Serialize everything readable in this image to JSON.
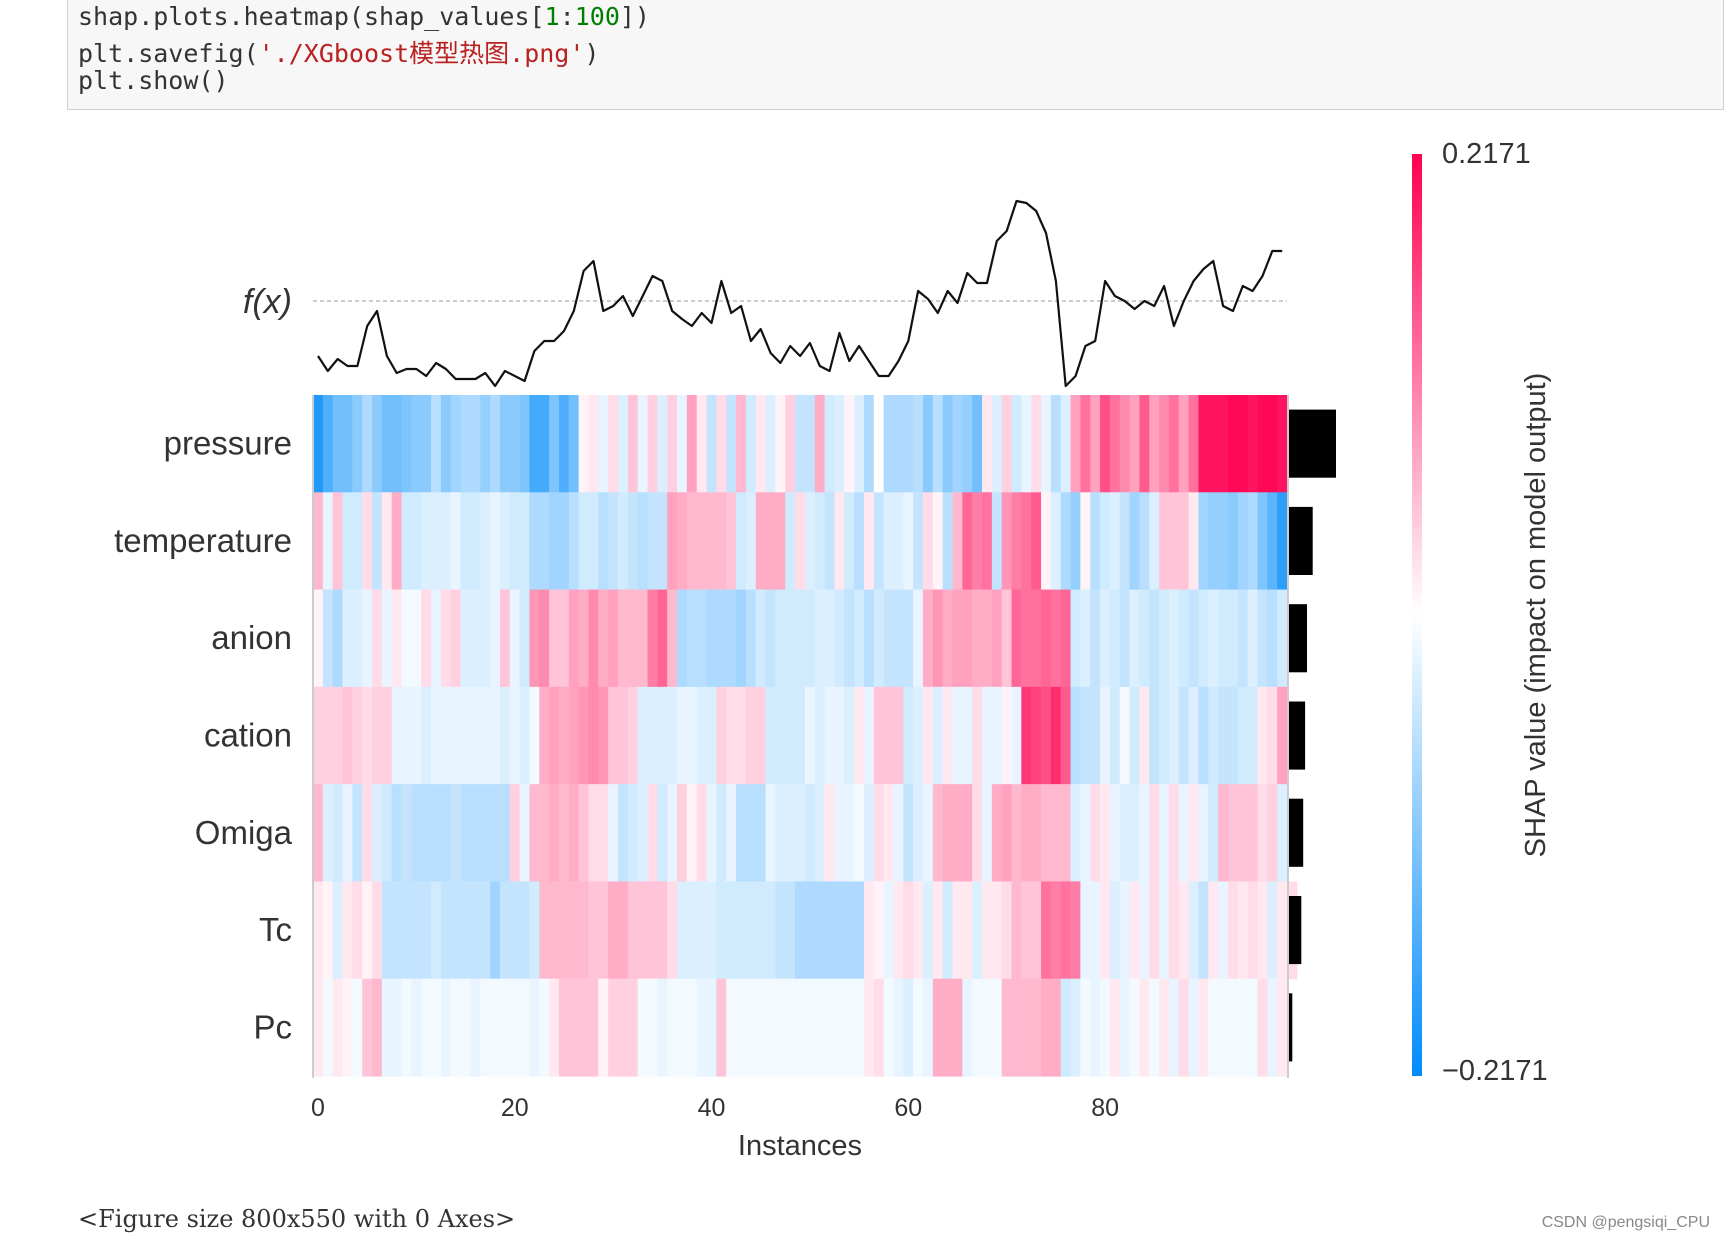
{
  "code": {
    "line1": {
      "a": "shap.plots.heatmap(shap_values[",
      "b": "1",
      "c": ":",
      "d": "100",
      "e": "])"
    },
    "line2": {
      "a": "plt.savefig(",
      "b": "'./XGboost模型热图.png'",
      "c": ")"
    },
    "line3": "plt.show()"
  },
  "output_text": "<Figure size 800x550 with 0 Axes>",
  "watermark": "CSDN @pengsiqi_CPU",
  "chart_data": {
    "type": "heatmap",
    "fx_label": "f(x)",
    "xlabel": "Instances",
    "x_ticks": [
      0,
      20,
      40,
      60,
      80
    ],
    "n_instances": 99,
    "features": [
      "pressure",
      "temperature",
      "anion",
      "cation",
      "Omiga",
      "Tc",
      "Pc"
    ],
    "colorbar": {
      "min_label": "−0.2171",
      "max_label": "0.2171",
      "min": -0.2171,
      "max": 0.2171,
      "label": "SHAP value (impact on model output)"
    },
    "colors": {
      "negative": "#008bfb",
      "positive": "#ff0052",
      "neutral": "#ffffff"
    },
    "mean_abs_shap": [
      0.099,
      0.05,
      0.038,
      0.034,
      0.03,
      0.026,
      0.007
    ],
    "fx_values": [
      -0.055,
      -0.07,
      -0.058,
      -0.065,
      -0.065,
      -0.025,
      -0.01,
      -0.055,
      -0.072,
      -0.068,
      -0.068,
      -0.075,
      -0.062,
      -0.068,
      -0.078,
      -0.078,
      -0.078,
      -0.072,
      -0.085,
      -0.07,
      -0.075,
      -0.08,
      -0.05,
      -0.04,
      -0.04,
      -0.03,
      -0.01,
      0.03,
      0.04,
      -0.01,
      -0.005,
      0.005,
      -0.015,
      0.005,
      0.025,
      0.02,
      -0.01,
      -0.018,
      -0.025,
      -0.012,
      -0.022,
      0.02,
      -0.012,
      -0.005,
      -0.04,
      -0.028,
      -0.052,
      -0.062,
      -0.045,
      -0.055,
      -0.042,
      -0.065,
      -0.07,
      -0.032,
      -0.06,
      -0.045,
      -0.06,
      -0.075,
      -0.075,
      -0.06,
      -0.04,
      0.01,
      0.002,
      -0.012,
      0.01,
      -0.002,
      0.028,
      0.018,
      0.018,
      0.06,
      0.07,
      0.1,
      0.098,
      0.09,
      0.068,
      0.02,
      -0.085,
      -0.075,
      -0.045,
      -0.04,
      0.02,
      0.005,
      0.0,
      -0.008,
      0.0,
      -0.005,
      0.015,
      -0.025,
      0.0,
      0.02,
      0.032,
      0.04,
      -0.005,
      -0.01,
      0.015,
      0.01,
      0.025,
      0.05,
      0.05
    ],
    "shap_values": [
      [
        -0.19,
        -0.15,
        -0.12,
        -0.12,
        -0.1,
        -0.07,
        -0.1,
        -0.12,
        -0.12,
        -0.11,
        -0.1,
        -0.1,
        -0.06,
        -0.1,
        -0.08,
        -0.07,
        -0.07,
        -0.09,
        -0.07,
        -0.1,
        -0.1,
        -0.11,
        -0.16,
        -0.16,
        -0.11,
        -0.15,
        -0.12,
        0.01,
        0.02,
        -0.02,
        0.03,
        -0.03,
        0.05,
        -0.02,
        0.04,
        -0.03,
        0.04,
        -0.02,
        0.08,
        0.02,
        -0.05,
        0.03,
        -0.05,
        0.06,
        -0.04,
        0.02,
        -0.03,
        0.01,
        0.04,
        -0.05,
        -0.05,
        0.07,
        -0.04,
        -0.03,
        0.01,
        -0.03,
        -0.07,
        0.0,
        -0.07,
        -0.07,
        -0.07,
        -0.06,
        -0.1,
        -0.06,
        -0.1,
        -0.08,
        -0.09,
        -0.12,
        0.02,
        -0.03,
        0.04,
        -0.04,
        -0.02,
        0.03,
        -0.02,
        -0.06,
        -0.03,
        0.08,
        0.12,
        0.08,
        0.15,
        0.12,
        0.1,
        0.08,
        0.14,
        0.08,
        0.1,
        0.12,
        0.08,
        0.12,
        0.2,
        0.2,
        0.2,
        0.21,
        0.21,
        0.2,
        0.21,
        0.21,
        0.2
      ],
      [
        0.06,
        -0.02,
        0.05,
        -0.04,
        -0.04,
        0.03,
        -0.05,
        0.02,
        0.07,
        -0.04,
        -0.04,
        -0.03,
        -0.03,
        -0.03,
        -0.02,
        -0.04,
        -0.04,
        -0.03,
        -0.02,
        -0.03,
        -0.04,
        -0.04,
        -0.07,
        -0.07,
        -0.08,
        -0.08,
        -0.06,
        -0.04,
        -0.04,
        -0.06,
        -0.05,
        -0.04,
        -0.05,
        -0.06,
        -0.05,
        -0.05,
        0.08,
        0.07,
        0.06,
        0.06,
        0.06,
        0.06,
        0.05,
        -0.04,
        -0.03,
        0.07,
        0.07,
        0.07,
        -0.04,
        0.03,
        -0.03,
        -0.04,
        -0.05,
        0.02,
        -0.04,
        -0.06,
        0.02,
        -0.05,
        -0.03,
        -0.03,
        -0.02,
        -0.05,
        0.03,
        0.01,
        -0.06,
        0.06,
        0.13,
        0.11,
        0.12,
        -0.05,
        0.09,
        0.11,
        0.12,
        0.14,
        0.01,
        -0.03,
        -0.07,
        -0.09,
        0.01,
        -0.06,
        -0.04,
        -0.03,
        -0.05,
        -0.08,
        -0.06,
        -0.03,
        0.05,
        0.05,
        0.05,
        0.02,
        -0.08,
        -0.09,
        -0.09,
        -0.1,
        -0.08,
        -0.07,
        -0.11,
        -0.14,
        -0.18
      ],
      [
        0.01,
        -0.05,
        -0.07,
        -0.03,
        -0.03,
        -0.02,
        0.03,
        -0.02,
        0.02,
        -0.01,
        -0.01,
        0.03,
        -0.02,
        0.03,
        0.04,
        -0.03,
        -0.03,
        -0.03,
        -0.02,
        0.05,
        -0.02,
        -0.04,
        0.09,
        0.1,
        0.05,
        0.05,
        0.08,
        0.07,
        0.1,
        0.07,
        0.08,
        0.06,
        0.06,
        0.06,
        0.11,
        0.13,
        0.06,
        -0.07,
        -0.06,
        -0.06,
        -0.07,
        -0.07,
        -0.07,
        -0.08,
        -0.06,
        -0.04,
        -0.05,
        -0.04,
        -0.04,
        -0.04,
        -0.04,
        -0.03,
        -0.03,
        -0.04,
        -0.05,
        -0.04,
        -0.06,
        -0.04,
        -0.05,
        -0.05,
        -0.05,
        -0.02,
        0.07,
        0.09,
        0.07,
        0.08,
        0.08,
        0.07,
        0.07,
        0.08,
        0.05,
        0.13,
        0.12,
        0.12,
        0.13,
        0.12,
        0.13,
        -0.04,
        -0.03,
        -0.05,
        -0.03,
        -0.04,
        -0.05,
        -0.03,
        -0.04,
        -0.05,
        -0.04,
        -0.03,
        -0.04,
        -0.05,
        -0.04,
        -0.03,
        -0.04,
        -0.04,
        -0.05,
        -0.03,
        -0.05,
        -0.06,
        -0.04
      ],
      [
        0.04,
        0.04,
        0.04,
        0.05,
        0.04,
        0.03,
        0.04,
        0.04,
        -0.02,
        -0.02,
        -0.02,
        -0.03,
        -0.02,
        -0.02,
        -0.02,
        -0.02,
        -0.02,
        -0.02,
        -0.02,
        -0.03,
        -0.02,
        -0.03,
        -0.01,
        0.07,
        0.08,
        0.07,
        0.08,
        0.09,
        0.1,
        0.09,
        0.05,
        0.05,
        0.04,
        -0.03,
        -0.03,
        -0.03,
        -0.03,
        -0.02,
        -0.02,
        -0.03,
        -0.03,
        0.04,
        0.03,
        0.03,
        0.04,
        0.04,
        -0.04,
        -0.04,
        -0.04,
        -0.04,
        -0.02,
        -0.03,
        -0.02,
        -0.02,
        -0.03,
        0.02,
        -0.02,
        0.05,
        0.05,
        0.05,
        -0.04,
        -0.03,
        0.02,
        -0.03,
        0.02,
        -0.02,
        -0.02,
        0.03,
        -0.02,
        -0.02,
        0.01,
        -0.02,
        0.17,
        0.16,
        0.15,
        0.18,
        0.14,
        -0.06,
        -0.05,
        -0.05,
        -0.02,
        -0.04,
        -0.01,
        -0.04,
        0.02,
        -0.05,
        -0.04,
        -0.03,
        -0.05,
        -0.03,
        -0.06,
        -0.04,
        -0.05,
        -0.05,
        -0.04,
        -0.04,
        0.02,
        0.03,
        0.08
      ],
      [
        0.06,
        -0.03,
        -0.04,
        -0.02,
        -0.05,
        0.03,
        -0.03,
        -0.04,
        -0.06,
        -0.05,
        -0.06,
        -0.06,
        -0.06,
        -0.06,
        -0.05,
        -0.06,
        -0.06,
        -0.06,
        -0.06,
        -0.06,
        0.04,
        -0.02,
        0.06,
        0.06,
        0.07,
        0.06,
        0.07,
        0.05,
        0.03,
        0.03,
        -0.02,
        -0.05,
        -0.04,
        -0.03,
        0.03,
        -0.04,
        -0.02,
        0.04,
        0.01,
        0.03,
        -0.02,
        -0.04,
        -0.02,
        -0.06,
        -0.06,
        -0.06,
        -0.02,
        -0.03,
        -0.03,
        -0.03,
        -0.04,
        -0.03,
        0.02,
        -0.02,
        -0.02,
        -0.01,
        -0.03,
        0.03,
        0.02,
        -0.02,
        -0.05,
        -0.03,
        -0.02,
        0.06,
        0.07,
        0.07,
        0.07,
        0.03,
        -0.02,
        0.07,
        0.08,
        0.06,
        0.07,
        0.07,
        0.06,
        0.06,
        0.06,
        -0.03,
        -0.02,
        0.03,
        0.02,
        -0.02,
        -0.03,
        -0.03,
        -0.02,
        0.03,
        -0.02,
        0.03,
        -0.02,
        0.02,
        -0.02,
        -0.04,
        0.06,
        0.05,
        0.05,
        0.05,
        0.03,
        0.04,
        -0.03
      ],
      [
        0.02,
        0.01,
        -0.03,
        0.02,
        0.03,
        0.01,
        0.03,
        -0.05,
        -0.05,
        -0.05,
        -0.05,
        -0.05,
        -0.04,
        -0.05,
        -0.05,
        -0.05,
        -0.05,
        -0.05,
        -0.08,
        -0.05,
        -0.05,
        -0.05,
        -0.04,
        0.06,
        0.06,
        0.06,
        0.06,
        0.06,
        0.05,
        0.05,
        0.07,
        0.07,
        0.05,
        0.05,
        0.05,
        0.05,
        0.03,
        -0.03,
        -0.03,
        -0.03,
        -0.03,
        -0.04,
        -0.04,
        -0.04,
        -0.04,
        -0.04,
        -0.04,
        -0.05,
        -0.05,
        -0.07,
        -0.07,
        -0.07,
        -0.07,
        -0.07,
        -0.07,
        -0.07,
        0.02,
        0.01,
        -0.02,
        0.02,
        0.03,
        0.02,
        -0.03,
        0.02,
        -0.04,
        0.02,
        0.02,
        -0.03,
        0.02,
        0.02,
        0.03,
        0.06,
        0.05,
        0.05,
        0.12,
        0.11,
        0.12,
        0.11,
        -0.02,
        -0.02,
        0.02,
        -0.03,
        -0.02,
        0.02,
        -0.02,
        0.03,
        -0.02,
        0.03,
        0.02,
        -0.03,
        -0.05,
        0.02,
        -0.02,
        0.03,
        0.02,
        0.03,
        0.02,
        -0.03,
        0.02,
        0.03
      ],
      [
        0.02,
        -0.01,
        0.02,
        0.01,
        -0.01,
        0.05,
        0.06,
        -0.02,
        -0.02,
        -0.01,
        -0.02,
        -0.01,
        -0.01,
        -0.02,
        -0.01,
        -0.01,
        -0.02,
        -0.01,
        -0.01,
        -0.01,
        -0.01,
        -0.01,
        -0.02,
        -0.01,
        0.02,
        0.05,
        0.05,
        0.05,
        0.05,
        0.01,
        0.04,
        0.04,
        0.04,
        -0.01,
        -0.01,
        -0.02,
        -0.01,
        -0.01,
        -0.01,
        -0.02,
        -0.02,
        0.05,
        -0.01,
        -0.01,
        -0.01,
        -0.01,
        -0.01,
        -0.01,
        -0.01,
        -0.01,
        -0.01,
        -0.01,
        -0.01,
        -0.01,
        -0.01,
        -0.01,
        0.02,
        0.03,
        -0.01,
        -0.02,
        -0.03,
        -0.01,
        -0.02,
        0.07,
        0.07,
        0.07,
        -0.02,
        -0.01,
        -0.01,
        -0.01,
        0.06,
        0.06,
        0.06,
        0.06,
        0.07,
        0.07,
        -0.04,
        -0.03,
        -0.01,
        -0.02,
        -0.01,
        0.02,
        -0.02,
        -0.01,
        0.02,
        -0.01,
        0.02,
        -0.02,
        0.03,
        -0.02,
        0.02,
        -0.01,
        -0.01,
        -0.01,
        -0.01,
        -0.01,
        0.03,
        -0.02,
        0.02
      ]
    ]
  }
}
